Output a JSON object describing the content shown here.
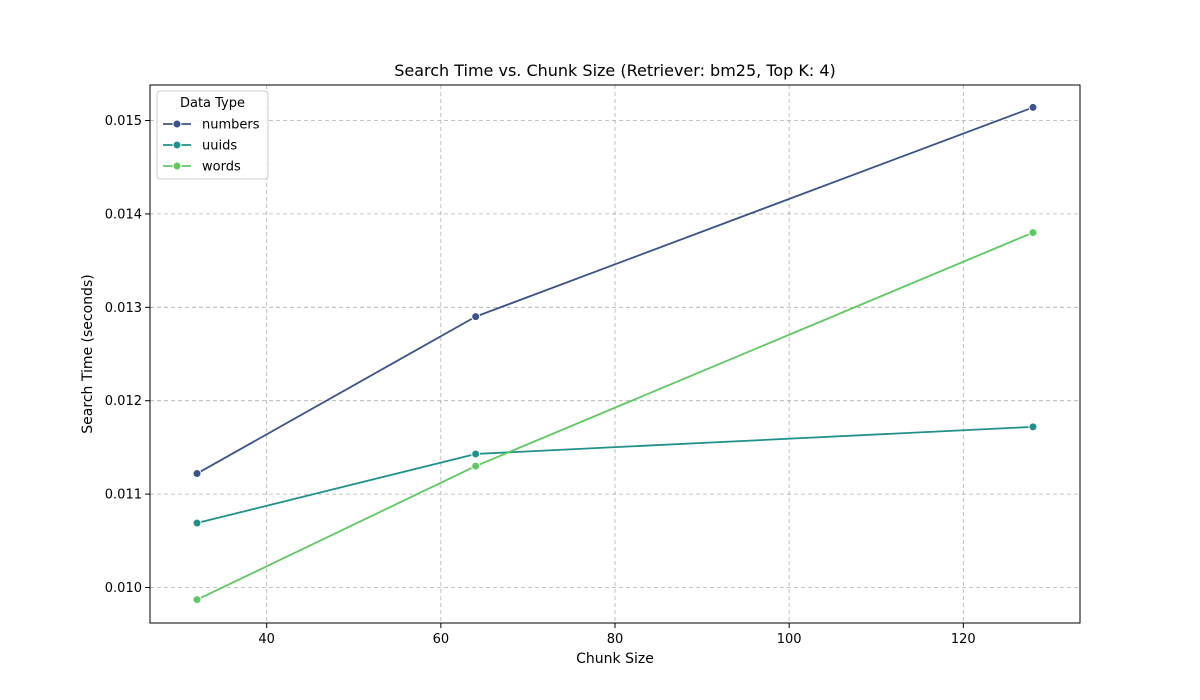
{
  "chart_data": {
    "type": "line",
    "title": "Search Time vs. Chunk Size (Retriever: bm25, Top K: 4)",
    "xlabel": "Chunk Size",
    "ylabel": "Search Time (seconds)",
    "x": [
      32,
      64,
      128
    ],
    "xlim": [
      26.6,
      133.4
    ],
    "ylim": [
      0.00962,
      0.01538
    ],
    "x_ticks": [
      40,
      60,
      80,
      100,
      120
    ],
    "y_ticks": [
      0.01,
      0.011,
      0.012,
      0.013,
      0.014,
      0.015
    ],
    "y_tick_labels": [
      "0.010",
      "0.011",
      "0.012",
      "0.013",
      "0.014",
      "0.015"
    ],
    "grid": true,
    "legend": {
      "title": "Data Type",
      "placement": "top-left"
    },
    "series": [
      {
        "name": "numbers",
        "color": "#3b528b",
        "values": [
          0.01122,
          0.0129,
          0.01514
        ]
      },
      {
        "name": "uuids",
        "color": "#21918c",
        "values": [
          0.01069,
          0.01143,
          0.01172
        ]
      },
      {
        "name": "words",
        "color": "#5ec962",
        "values": [
          0.00987,
          0.0113,
          0.0138
        ]
      }
    ]
  }
}
